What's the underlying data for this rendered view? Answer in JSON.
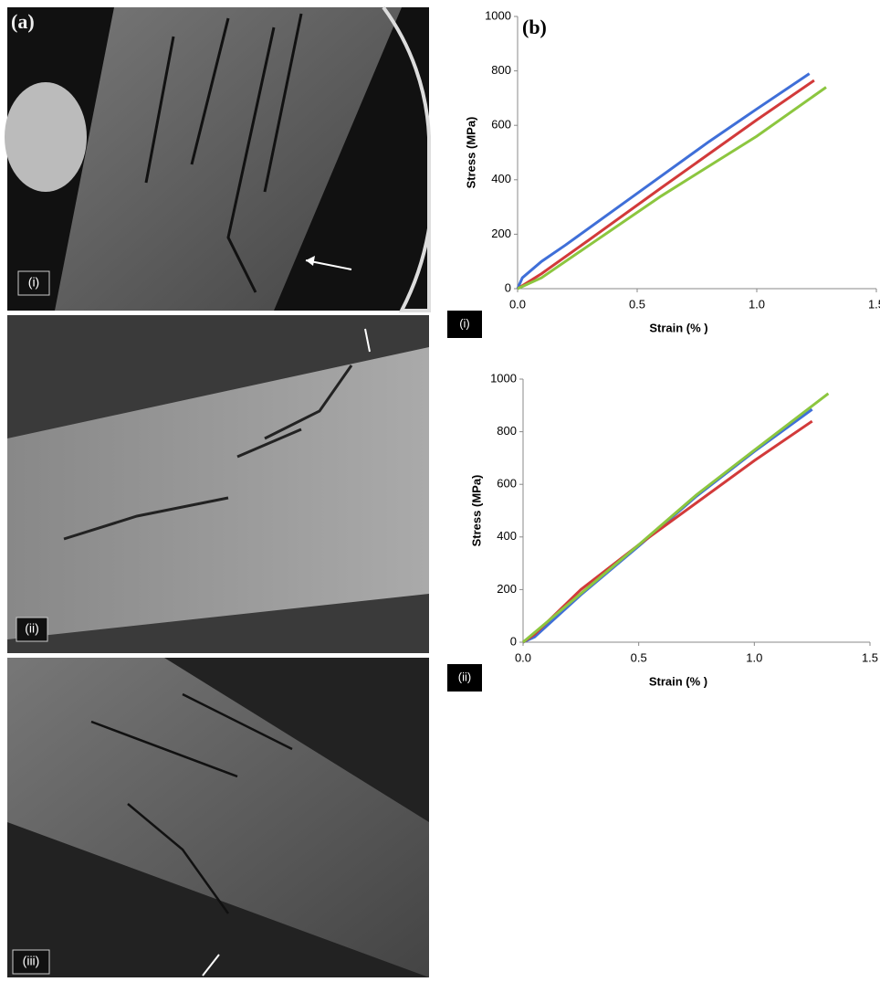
{
  "panels": {
    "a": "(a)",
    "b": "(b)",
    "images": [
      "(i)",
      "(ii)",
      "(iii)"
    ]
  },
  "chart_data": [
    {
      "type": "line",
      "panel_label": "(i)",
      "xlabel": "Strain (% )",
      "ylabel": "Stress (MPa)",
      "xlim": [
        0,
        1.5
      ],
      "ylim": [
        0,
        1000
      ],
      "xticks": [
        {
          "value": 0,
          "label": "0.0"
        },
        0.5,
        {
          "value": 1,
          "label": "1.0"
        },
        1.5
      ],
      "yticks": [
        0,
        200,
        400,
        600,
        800,
        1000
      ],
      "series": [
        {
          "color": "#3f6fd8",
          "x": [
            0,
            0.02,
            0.1,
            0.2,
            0.5,
            0.8,
            1.0,
            1.22
          ],
          "values": [
            0,
            40,
            100,
            160,
            350,
            540,
            660,
            790
          ]
        },
        {
          "color": "#d23a3a",
          "x": [
            0,
            0.1,
            0.3,
            0.6,
            1.0,
            1.24
          ],
          "values": [
            0,
            55,
            180,
            370,
            620,
            765
          ]
        },
        {
          "color": "#8cc63f",
          "x": [
            0,
            0.1,
            0.3,
            0.6,
            1.0,
            1.29
          ],
          "values": [
            0,
            40,
            160,
            340,
            560,
            740
          ]
        }
      ]
    },
    {
      "type": "line",
      "panel_label": "(ii)",
      "xlabel": "Strain (% )",
      "ylabel": "Stress (MPa)",
      "xlim": [
        0,
        1.5
      ],
      "ylim": [
        0,
        1000
      ],
      "xticks": [
        {
          "value": 0,
          "label": "0.0"
        },
        0.5,
        {
          "value": 1,
          "label": "1.0"
        },
        1.5
      ],
      "yticks": [
        0,
        200,
        400,
        600,
        800,
        1000
      ],
      "series": [
        {
          "color": "#3f6fd8",
          "x": [
            0,
            0.05,
            0.25,
            0.5,
            0.75,
            1.0,
            1.25
          ],
          "values": [
            0,
            20,
            180,
            365,
            555,
            725,
            885
          ]
        },
        {
          "color": "#d23a3a",
          "x": [
            0,
            0.05,
            0.25,
            0.5,
            0.75,
            1.0,
            1.25
          ],
          "values": [
            0,
            30,
            200,
            370,
            530,
            690,
            840
          ]
        },
        {
          "color": "#8cc63f",
          "x": [
            0,
            0.25,
            0.5,
            0.75,
            1.0,
            1.32
          ],
          "values": [
            0,
            185,
            370,
            560,
            730,
            945
          ]
        }
      ]
    }
  ]
}
